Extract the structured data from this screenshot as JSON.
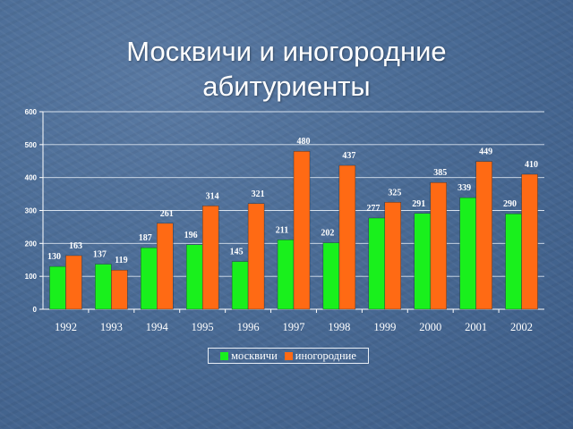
{
  "title_line1": "Москвичи и иногородние",
  "title_line2": "абитуриенты",
  "chart_data": {
    "type": "bar",
    "categories": [
      "1992",
      "1993",
      "1994",
      "1995",
      "1996",
      "1997",
      "1998",
      "1999",
      "2000",
      "2001",
      "2002"
    ],
    "series": [
      {
        "name": "москвичи",
        "color": "#19f01c",
        "values": [
          130,
          137,
          187,
          196,
          145,
          211,
          202,
          277,
          291,
          339,
          290
        ]
      },
      {
        "name": "иногородние",
        "color": "#ff6a14",
        "values": [
          163,
          119,
          261,
          314,
          321,
          480,
          437,
          325,
          385,
          449,
          410
        ]
      }
    ],
    "ylim": [
      0,
      600
    ],
    "yticks": [
      0,
      100,
      200,
      300,
      400,
      500,
      600
    ],
    "grid": true,
    "legend_position": "bottom"
  }
}
